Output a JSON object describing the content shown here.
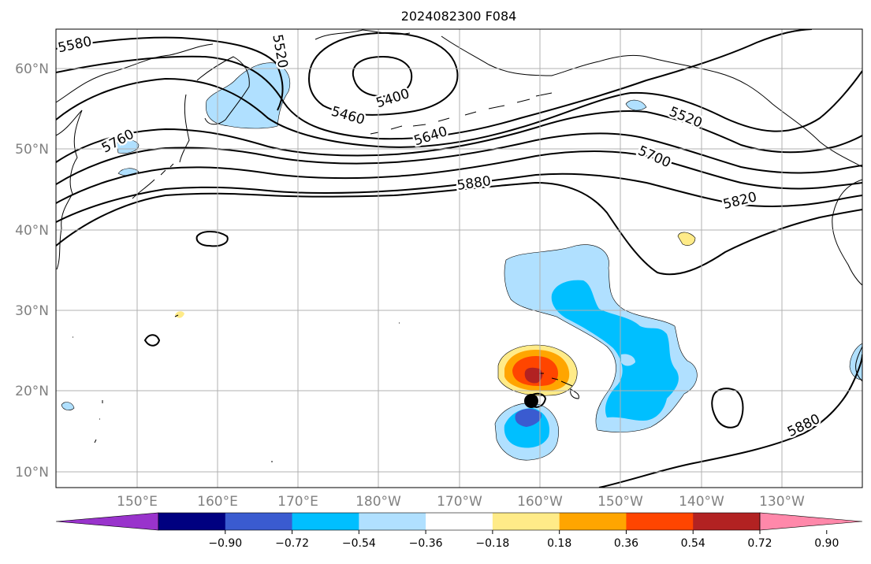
{
  "title": "2024082300 F084",
  "lat_labels": [
    "60°N",
    "50°N",
    "40°N",
    "30°N",
    "20°N",
    "10°N"
  ],
  "lon_labels": [
    "150°E",
    "160°E",
    "170°E",
    "180°W",
    "170°W",
    "160°W",
    "150°W",
    "140°W",
    "130°W"
  ],
  "contour_labels": [
    "5580",
    "5520",
    "5400",
    "5460",
    "5640",
    "5760",
    "5520",
    "5700",
    "5880",
    "5820",
    "5880"
  ],
  "colorbar": {
    "tick_labels": [
      "−0.90",
      "−0.72",
      "−0.54",
      "−0.36",
      "−0.18",
      "0.18",
      "0.36",
      "0.54",
      "0.72",
      "0.90"
    ],
    "colors": [
      "#9933cc",
      "#000080",
      "#3a5bd0",
      "#00bfff",
      "#b0e0ff",
      "#ffffff",
      "#ffeb88",
      "#ffa500",
      "#ff4500",
      "#b22222",
      "#ff88aa"
    ]
  },
  "colors": {
    "light_blue": "#b0e0ff",
    "deep_sky": "#00bfff",
    "royal": "#3a5bd0",
    "yellow": "#ffeb88",
    "orange": "#ffa500",
    "red_orange": "#ff4500",
    "firebrick": "#b22222"
  }
}
